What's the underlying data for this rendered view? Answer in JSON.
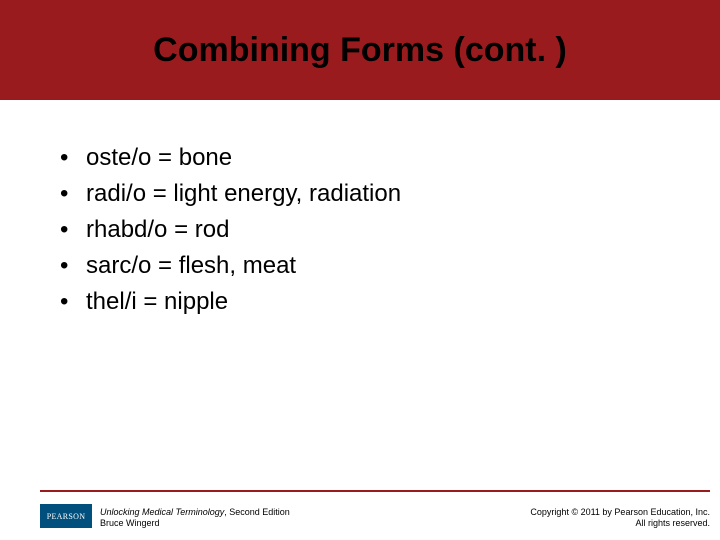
{
  "slide": {
    "title": "Combining Forms (cont. )",
    "title_fontsize": 34,
    "header_bg": "#9a1b1e",
    "header_text_color": "#000000",
    "bullets": [
      "oste/o = bone",
      "radi/o = light energy, radiation",
      "rhabd/o = rod",
      "sarc/o = flesh, meat",
      "thel/i = nipple"
    ],
    "bullet_fontsize": 24,
    "bullet_color": "#000000",
    "background_color": "#ffffff"
  },
  "footer": {
    "rule_color": "#9a1b1e",
    "logo_text": "PEARSON",
    "logo_bg": "#004f7c",
    "logo_text_color": "#ffffff",
    "book_title": "Unlocking Medical Terminology",
    "book_edition": ", Second Edition",
    "author": "Bruce Wingerd",
    "copyright_line1": "Copyright © 2011 by Pearson Education, Inc.",
    "copyright_line2": "All rights reserved."
  }
}
